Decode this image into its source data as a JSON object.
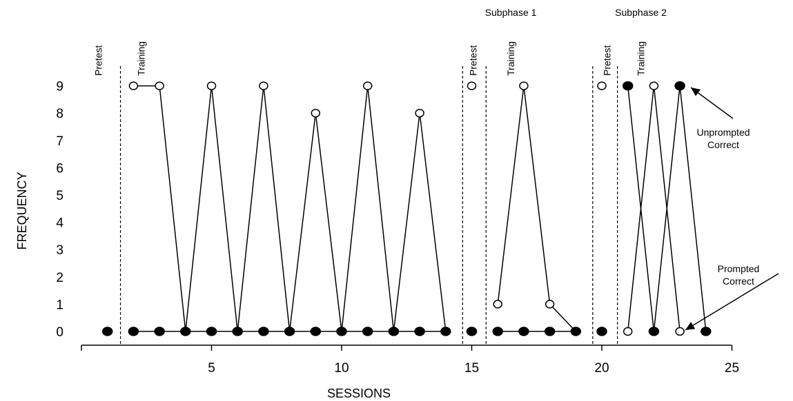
{
  "chart_data": {
    "type": "line",
    "title": "",
    "xlabel": "SESSIONS",
    "ylabel": "FREQUENCY",
    "xlim": [
      0,
      25
    ],
    "ylim": [
      0,
      9
    ],
    "x_ticks": [
      5,
      10,
      15,
      20,
      25
    ],
    "x_tick_labels": [
      "5",
      "10",
      "15",
      "20",
      "25"
    ],
    "y_ticks": [
      0,
      1,
      2,
      3,
      4,
      5,
      6,
      7,
      8,
      9
    ],
    "y_tick_labels": [
      "0",
      "1",
      "2",
      "3",
      "4",
      "5",
      "6",
      "7",
      "8",
      "9"
    ],
    "grid": false,
    "legend": "none",
    "phase_lines": [
      1.5,
      14.65,
      15.55,
      19.65,
      20.6
    ],
    "phase_labels": [
      {
        "text": "Pretest",
        "x": 0.65
      },
      {
        "text": "Training",
        "x": 2.3
      },
      {
        "text": "Pretest",
        "x": 15.05
      },
      {
        "text": "Training",
        "x": 16.5
      },
      {
        "text": "Pretest",
        "x": 20.2
      },
      {
        "text": "Training",
        "x": 21.5
      }
    ],
    "subphase_labels": [
      {
        "text": "Subphase 1",
        "x": 16.5
      },
      {
        "text": "Subphase 2",
        "x": 21.5
      }
    ],
    "annotations": [
      {
        "lines": [
          "Unprompted",
          "Correct"
        ],
        "points_to": [
          23.6,
          9
        ]
      },
      {
        "lines": [
          "Prompted",
          "Correct"
        ],
        "points_to": [
          23.3,
          0
        ]
      }
    ],
    "series": [
      {
        "marker": "open",
        "segments": [
          [
            [
              2,
              9
            ],
            [
              3,
              9
            ],
            [
              4,
              0
            ],
            [
              5,
              9
            ],
            [
              6,
              0
            ],
            [
              7,
              9
            ],
            [
              8,
              0
            ],
            [
              9,
              8
            ],
            [
              10,
              0
            ],
            [
              11,
              9
            ],
            [
              12,
              0
            ],
            [
              13,
              8
            ],
            [
              14,
              0
            ]
          ],
          [
            [
              15,
              9
            ]
          ],
          [
            [
              16,
              1
            ],
            [
              17,
              9
            ],
            [
              18,
              1
            ],
            [
              19,
              0
            ]
          ],
          [
            [
              20,
              9
            ]
          ],
          [
            [
              21,
              0
            ],
            [
              22,
              9
            ],
            [
              23,
              0
            ]
          ]
        ]
      },
      {
        "marker": "filled",
        "segments": [
          [
            [
              1,
              0
            ]
          ],
          [
            [
              2,
              0
            ],
            [
              3,
              0
            ],
            [
              4,
              0
            ],
            [
              5,
              0
            ],
            [
              6,
              0
            ],
            [
              7,
              0
            ],
            [
              8,
              0
            ],
            [
              9,
              0
            ],
            [
              10,
              0
            ],
            [
              11,
              0
            ],
            [
              12,
              0
            ],
            [
              13,
              0
            ],
            [
              14,
              0
            ]
          ],
          [
            [
              15,
              0
            ]
          ],
          [
            [
              16,
              0
            ],
            [
              17,
              0
            ],
            [
              18,
              0
            ],
            [
              19,
              0
            ]
          ],
          [
            [
              20,
              0
            ]
          ],
          [
            [
              21,
              9
            ],
            [
              22,
              0
            ],
            [
              23,
              9
            ],
            [
              24,
              0
            ]
          ]
        ]
      }
    ]
  }
}
